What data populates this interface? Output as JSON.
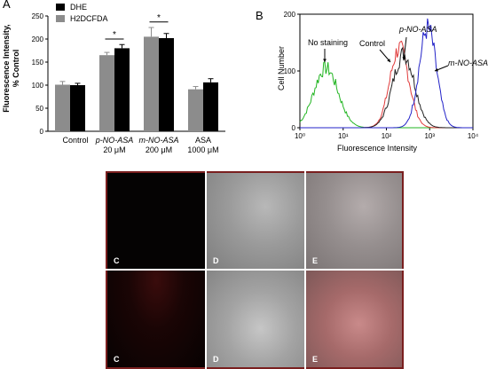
{
  "panel_a": {
    "letter": "A",
    "legend": [
      {
        "label": "DHE",
        "color": "#000000"
      },
      {
        "label": "H2DCFDA",
        "color": "#8c8c8c"
      }
    ],
    "ylabel": "Fluorescence Intensity,\n% Control",
    "categories": [
      {
        "name": "Control",
        "dose": ""
      },
      {
        "name": "p-NO-ASA",
        "dose": "20 μM"
      },
      {
        "name": "m-NO-ASA",
        "dose": "200 μM"
      },
      {
        "name": "ASA",
        "dose": "1000 μM"
      }
    ],
    "significance": [
      "*",
      "*"
    ]
  },
  "panel_b": {
    "letter": "B",
    "ylabel": "Cell Number",
    "xlabel": "Fluorescence Intensity",
    "annotations": [
      "No staining",
      "Control",
      "p-NO-ASA",
      "m-NO-ASA"
    ]
  },
  "panel_micro": {
    "labels_top": [
      "C",
      "D",
      "E"
    ],
    "labels_bottom": [
      "C",
      "D",
      "E"
    ]
  },
  "chart_data": [
    {
      "type": "bar",
      "title": "",
      "ylabel": "Fluorescence Intensity, % Control",
      "xlabel": "",
      "ylim": [
        0,
        250
      ],
      "yticks": [
        0,
        50,
        100,
        150,
        200,
        250
      ],
      "categories": [
        "Control 0",
        "p-NO-ASA 20 μM",
        "m-NO-ASA 200 μM",
        "ASA 1000 μM"
      ],
      "series": [
        {
          "name": "H2DCFDA",
          "color": "#8c8c8c",
          "values": [
            101,
            165,
            205,
            91
          ],
          "errors": [
            7,
            6,
            20,
            6
          ]
        },
        {
          "name": "DHE",
          "color": "#000000",
          "values": [
            100,
            180,
            202,
            106
          ],
          "errors": [
            4,
            8,
            10,
            8
          ]
        }
      ],
      "legend": "top-left"
    },
    {
      "type": "line",
      "title": "",
      "xlabel": "Fluorescence Intensity",
      "ylabel": "Cell Number",
      "xscale": "log",
      "xlim": [
        1,
        10000
      ],
      "ylim": [
        0,
        200
      ],
      "yticks": [
        0,
        100,
        200
      ],
      "xtick_labels": [
        "10⁰",
        "10¹",
        "10²",
        "10³",
        "10⁴"
      ],
      "series": [
        {
          "name": "No staining",
          "color": "#22b522",
          "peak_x": 4,
          "peak_y": 105,
          "width": 0.28
        },
        {
          "name": "Control",
          "color": "#e03a3a",
          "peak_x": 200,
          "peak_y": 140,
          "width": 0.22
        },
        {
          "name": "p-NO-ASA",
          "color": "#222222",
          "peak_x": 250,
          "peak_y": 130,
          "width": 0.25
        },
        {
          "name": "m-NO-ASA",
          "color": "#2323c8",
          "peak_x": 900,
          "peak_y": 175,
          "width": 0.2
        }
      ]
    }
  ]
}
